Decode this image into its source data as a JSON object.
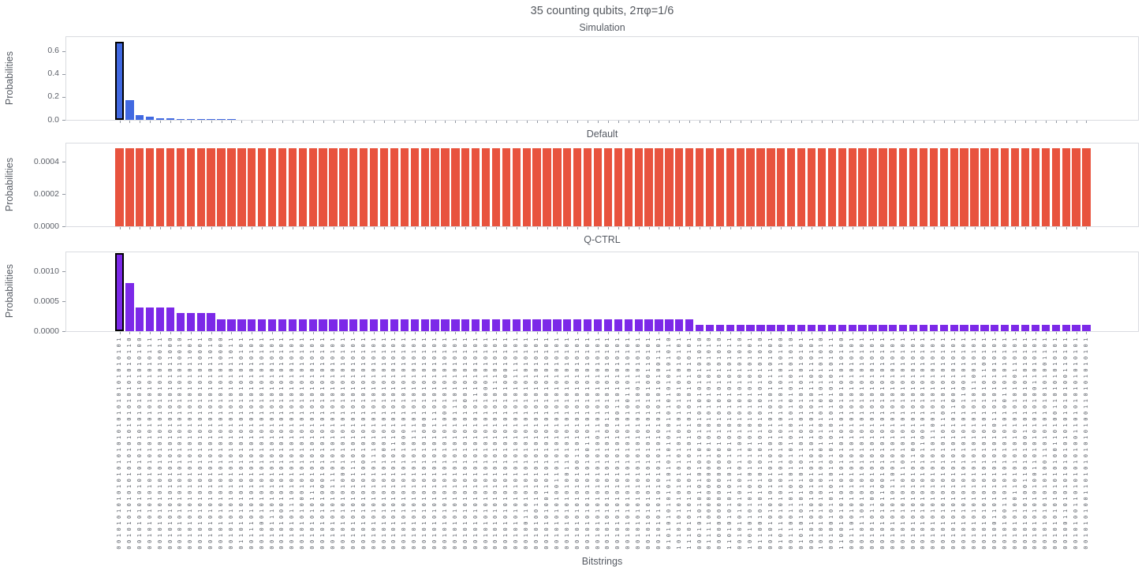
{
  "title": "35 counting qubits, 2πφ=1/6",
  "xlabel": "Bitstrings",
  "categories": [
    "00101010101010101010101010101010101",
    "00101010101010101010101010101010110",
    "00101010101010101010101010101010100",
    "00101010101010101010101010101010111",
    "00101010101010101010101010101010011",
    "00101010101010101010101010101011000",
    "00101010101010101010101010101010010",
    "00101010101010101010101010101011001",
    "00101010101010101010101010101010001",
    "00101010101010101010101010101011010",
    "00101010101010101010101010101010000",
    "00101010101010101010101010101011011",
    "01101010101010101010101010101010101",
    "00111010101010101010101010101010101",
    "00100010101010101010101010101010101",
    "00101110101010101010101010101010101",
    "00101000101010101010101010101010101",
    "00101011101010101010101010101010101",
    "00101010001010101010101010101010101",
    "00101010111010101010101010101010101",
    "00101010100010101010101010101010101",
    "00101010101110101010101010101010101",
    "00101010101000101010101010101010101",
    "00101010101011101010101010101010101",
    "00101010101010001010101010101010101",
    "00101010101010111010101010101010101",
    "00101010101010100010101010101010101",
    "00101010101010101110101010101010101",
    "00101010101010101000101010101010101",
    "00101010101010101011101010101010101",
    "00101010101010101010001010101010101",
    "00101010101010101010111010101010101",
    "00101010101010101010100010101010101",
    "00101010101010101010101110101010101",
    "00101010101010101010101000101010101",
    "00101010101010101010101011101010101",
    "00101010101010101010101010001010101",
    "00101010101010101010101010111010101",
    "00101010101010101010101010100010101",
    "00101010101010101010101010101110101",
    "00100110101010101010101010101010101",
    "00101001101010101010101010101010101",
    "00101010011010101010101010101010101",
    "00101010100110101010101010101010101",
    "00101010101001101010101010101010101",
    "00101010101010011010101010101010101",
    "00101010101010100110101010101010101",
    "00101010101010101001101010101010101",
    "00101010101010101010011010101010101",
    "00101010101010101010100110101010101",
    "00101010101010101010101001101010101",
    "00101010101010101010101010011010101",
    "00101010101010101010101010100110101",
    "00101010101010101010101010101001101",
    "01010101010101010101010101010101010",
    "10101010101010101010101010101010101",
    "11101010101010101010101010101010101",
    "00010101010101010101010101010101010",
    "01111000000000010101010101010101010",
    "00000000000000000101010101010101010",
    "11010101010101010101010101010101011",
    "00101010101010111001010101010101010",
    "10010101010101010101010101010101001",
    "01100101010101010101010101010101010",
    "00101010101010101010101010101101001",
    "01011010101010101010101010101010100",
    "00110011010101010101010101010101010",
    "01010101010101011010101010101010101",
    "00101010101010101010101010110110101",
    "10101010101010100101010101010101010",
    "00100101010101010101010101010101011",
    "11001010101010101010101010101010100",
    "00110010101010101010101010101010101",
    "00101100101010101010101010101010101",
    "00101011001010101010101010101010101",
    "00101010110010101010101010101010101",
    "00101010101100101010101010101010101",
    "00101010101011001010101010101010101",
    "00101010101010110010101010101010101",
    "00101010101010101100101010101010101",
    "00101010101010101011001010101010101",
    "00101010101010101010110010101010101",
    "00101010101010101010101100101010101",
    "00101010101010101010101011001010101",
    "00101010101010101010101010110010101",
    "00101010101010101010101010101100101",
    "00100110101010101010011010101010101",
    "00101001101010101010101001101010101",
    "00101010011010101010101010100110101",
    "00101010100110101001101010101010101",
    "00101010101001101010101010011010101",
    "00101010101010011010101010101001101",
    "00101010101010100110100110101010101",
    "00100110101010101010101010100110101",
    "00101001101010101001101010101010101",
    "00101010011010101010100110101010101"
  ],
  "chart_data": [
    {
      "type": "bar",
      "title": "Simulation",
      "ylabel": "Probabilities",
      "color": "#4169E1",
      "highlight_index": 0,
      "highlight_edge": "#000000",
      "ylim": [
        0,
        0.731
      ],
      "ytick_values": [
        0,
        0.2,
        0.4,
        0.6
      ],
      "ytick_labels": [
        "0.0",
        "0.2",
        "0.4",
        "0.6"
      ],
      "values": [
        0.684,
        0.171,
        0.044,
        0.029,
        0.016,
        0.014,
        0.008,
        0.008,
        0.007,
        0.006,
        0.006,
        0.005,
        0,
        0,
        0,
        0,
        0,
        0,
        0,
        0,
        0,
        0,
        0,
        0,
        0,
        0,
        0,
        0,
        0,
        0,
        0,
        0,
        0,
        0,
        0,
        0,
        0,
        0,
        0,
        0,
        0,
        0,
        0,
        0,
        0,
        0,
        0,
        0,
        0,
        0,
        0,
        0,
        0,
        0,
        0,
        0,
        0,
        0,
        0,
        0,
        0,
        0,
        0,
        0,
        0,
        0,
        0,
        0,
        0,
        0,
        0,
        0,
        0,
        0,
        0,
        0,
        0,
        0,
        0,
        0,
        0,
        0,
        0,
        0,
        0,
        0,
        0,
        0,
        0,
        0,
        0,
        0,
        0,
        0,
        0,
        0
      ]
    },
    {
      "type": "bar",
      "title": "Default",
      "ylabel": "Probabilities",
      "color": "#E8533E",
      "highlight_index": null,
      "highlight_edge": "#000000",
      "ylim": [
        0,
        0.00052
      ],
      "ytick_values": [
        0,
        0.0002,
        0.0004
      ],
      "ytick_labels": [
        "0.0000",
        "0.0002",
        "0.0004"
      ],
      "values": [
        0.000488,
        0.000488,
        0.000488,
        0.000488,
        0.000488,
        0.000488,
        0.000488,
        0.000488,
        0.000488,
        0.000488,
        0.000488,
        0.000488,
        0.000488,
        0.000488,
        0.000488,
        0.000488,
        0.000488,
        0.000488,
        0.000488,
        0.000488,
        0.000488,
        0.000488,
        0.000488,
        0.000488,
        0.000488,
        0.000488,
        0.000488,
        0.000488,
        0.000488,
        0.000488,
        0.000488,
        0.000488,
        0.000488,
        0.000488,
        0.000488,
        0.000488,
        0.000488,
        0.000488,
        0.000488,
        0.000488,
        0.000488,
        0.000488,
        0.000488,
        0.000488,
        0.000488,
        0.000488,
        0.000488,
        0.000488,
        0.000488,
        0.000488,
        0.000488,
        0.000488,
        0.000488,
        0.000488,
        0.000488,
        0.000488,
        0.000488,
        0.000488,
        0.000488,
        0.000488,
        0.000488,
        0.000488,
        0.000488,
        0.000488,
        0.000488,
        0.000488,
        0.000488,
        0.000488,
        0.000488,
        0.000488,
        0.000488,
        0.000488,
        0.000488,
        0.000488,
        0.000488,
        0.000488,
        0.000488,
        0.000488,
        0.000488,
        0.000488,
        0.000488,
        0.000488,
        0.000488,
        0.000488,
        0.000488,
        0.000488,
        0.000488,
        0.000488,
        0.000488,
        0.000488,
        0.000488,
        0.000488,
        0.000488,
        0.000488,
        0.000488,
        0.000488
      ]
    },
    {
      "type": "bar",
      "title": "Q-CTRL",
      "ylabel": "Probabilities",
      "color": "#7C29E8",
      "highlight_index": 0,
      "highlight_edge": "#000000",
      "ylim": [
        0,
        0.00133
      ],
      "ytick_values": [
        0,
        0.0005,
        0.001
      ],
      "ytick_labels": [
        "0.0000",
        "0.0005",
        "0.0010"
      ],
      "values": [
        0.0013,
        0.0008,
        0.0004,
        0.0004,
        0.0004,
        0.0004,
        0.0003,
        0.0003,
        0.0003,
        0.0003,
        0.0002,
        0.0002,
        0.0002,
        0.0002,
        0.0002,
        0.0002,
        0.0002,
        0.0002,
        0.0002,
        0.0002,
        0.0002,
        0.0002,
        0.0002,
        0.0002,
        0.0002,
        0.0002,
        0.0002,
        0.0002,
        0.0002,
        0.0002,
        0.0002,
        0.0002,
        0.0002,
        0.0002,
        0.0002,
        0.0002,
        0.0002,
        0.0002,
        0.0002,
        0.0002,
        0.0002,
        0.0002,
        0.0002,
        0.0002,
        0.0002,
        0.0002,
        0.0002,
        0.0002,
        0.0002,
        0.0002,
        0.0002,
        0.0002,
        0.0002,
        0.0002,
        0.0002,
        0.0002,
        0.0002,
        0.0001,
        0.0001,
        0.0001,
        0.0001,
        0.0001,
        0.0001,
        0.0001,
        0.0001,
        0.0001,
        0.0001,
        0.0001,
        0.0001,
        0.0001,
        0.0001,
        0.0001,
        0.0001,
        0.0001,
        0.0001,
        0.0001,
        0.0001,
        0.0001,
        0.0001,
        0.0001,
        0.0001,
        0.0001,
        0.0001,
        0.0001,
        0.0001,
        0.0001,
        0.0001,
        0.0001,
        0.0001,
        0.0001,
        0.0001,
        0.0001,
        0.0001,
        0.0001,
        0.0001,
        0.0001
      ]
    }
  ]
}
